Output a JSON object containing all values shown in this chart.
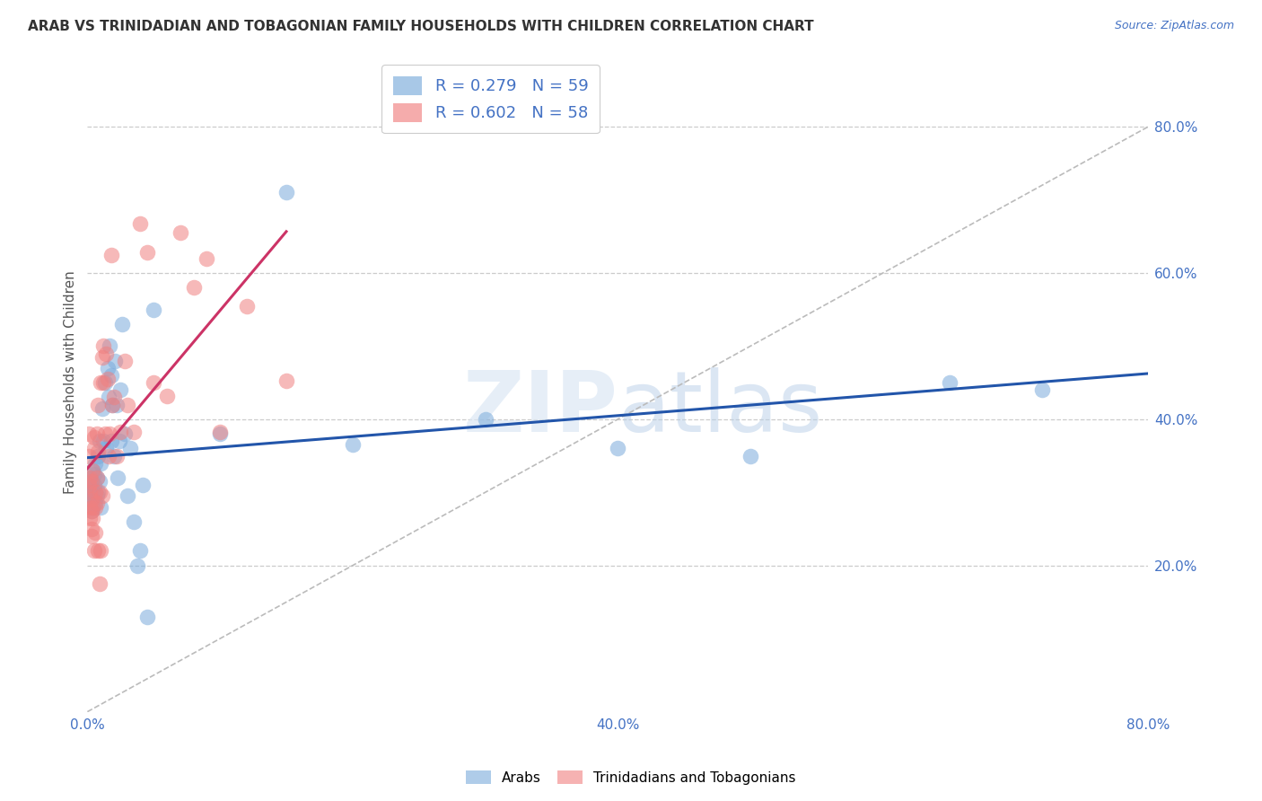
{
  "title": "ARAB VS TRINIDADIAN AND TOBAGONIAN FAMILY HOUSEHOLDS WITH CHILDREN CORRELATION CHART",
  "source": "Source: ZipAtlas.com",
  "ylabel": "Family Households with Children",
  "xlim": [
    0.0,
    0.8
  ],
  "ylim": [
    0.0,
    0.9
  ],
  "color_arab": "#7aabdb",
  "color_tt": "#f08080",
  "color_arab_line": "#2255aa",
  "color_tt_line": "#cc3366",
  "legend_arab_r": "0.279",
  "legend_arab_n": "59",
  "legend_tt_r": "0.602",
  "legend_tt_n": "58",
  "arab_x": [
    0.001,
    0.001,
    0.002,
    0.002,
    0.002,
    0.003,
    0.003,
    0.003,
    0.003,
    0.004,
    0.004,
    0.004,
    0.005,
    0.005,
    0.005,
    0.006,
    0.006,
    0.007,
    0.007,
    0.008,
    0.008,
    0.009,
    0.009,
    0.01,
    0.01,
    0.011,
    0.012,
    0.013,
    0.014,
    0.015,
    0.016,
    0.017,
    0.018,
    0.018,
    0.019,
    0.02,
    0.021,
    0.022,
    0.023,
    0.024,
    0.025,
    0.026,
    0.028,
    0.03,
    0.032,
    0.035,
    0.038,
    0.04,
    0.042,
    0.045,
    0.05,
    0.1,
    0.15,
    0.2,
    0.3,
    0.4,
    0.5,
    0.65,
    0.72
  ],
  "arab_y": [
    0.31,
    0.295,
    0.32,
    0.3,
    0.285,
    0.305,
    0.29,
    0.315,
    0.275,
    0.3,
    0.33,
    0.28,
    0.31,
    0.295,
    0.325,
    0.34,
    0.285,
    0.32,
    0.295,
    0.35,
    0.3,
    0.37,
    0.315,
    0.34,
    0.28,
    0.415,
    0.37,
    0.45,
    0.36,
    0.47,
    0.43,
    0.5,
    0.46,
    0.37,
    0.42,
    0.35,
    0.48,
    0.42,
    0.32,
    0.37,
    0.44,
    0.53,
    0.38,
    0.295,
    0.36,
    0.26,
    0.2,
    0.22,
    0.31,
    0.13,
    0.55,
    0.38,
    0.71,
    0.365,
    0.4,
    0.36,
    0.35,
    0.45,
    0.44
  ],
  "tt_x": [
    0.001,
    0.001,
    0.001,
    0.002,
    0.002,
    0.002,
    0.002,
    0.003,
    0.003,
    0.003,
    0.003,
    0.003,
    0.004,
    0.004,
    0.004,
    0.005,
    0.005,
    0.005,
    0.006,
    0.006,
    0.006,
    0.007,
    0.007,
    0.007,
    0.008,
    0.008,
    0.008,
    0.009,
    0.009,
    0.01,
    0.01,
    0.011,
    0.011,
    0.012,
    0.012,
    0.013,
    0.014,
    0.015,
    0.016,
    0.017,
    0.018,
    0.019,
    0.02,
    0.022,
    0.025,
    0.028,
    0.03,
    0.035,
    0.04,
    0.045,
    0.05,
    0.06,
    0.07,
    0.08,
    0.09,
    0.1,
    0.12,
    0.15
  ],
  "tt_y": [
    0.35,
    0.38,
    0.31,
    0.3,
    0.28,
    0.32,
    0.265,
    0.25,
    0.275,
    0.29,
    0.24,
    0.315,
    0.28,
    0.33,
    0.265,
    0.36,
    0.375,
    0.22,
    0.3,
    0.28,
    0.245,
    0.285,
    0.38,
    0.32,
    0.42,
    0.355,
    0.22,
    0.3,
    0.175,
    0.45,
    0.22,
    0.295,
    0.485,
    0.5,
    0.45,
    0.38,
    0.49,
    0.455,
    0.35,
    0.38,
    0.625,
    0.42,
    0.43,
    0.35,
    0.382,
    0.48,
    0.42,
    0.382,
    0.668,
    0.628,
    0.45,
    0.432,
    0.655,
    0.58,
    0.62,
    0.382,
    0.555,
    0.452
  ]
}
